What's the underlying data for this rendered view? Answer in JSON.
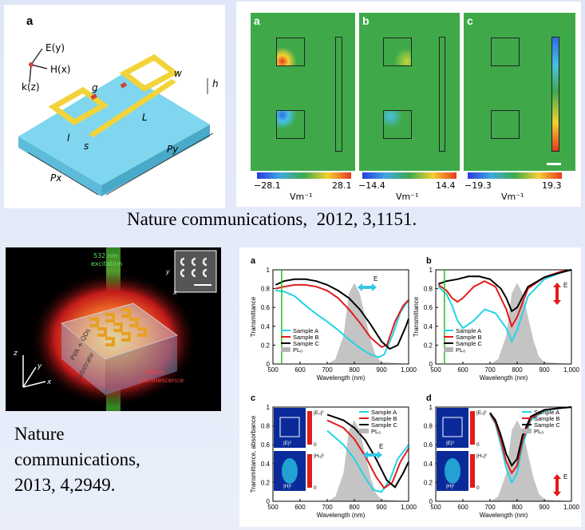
{
  "citations": {
    "top": "Nature communications,  2012, 3,1151.",
    "bottom_line1": "Nature",
    "bottom_line2": "communications,",
    "bottom_line3": "2013, 4,2949."
  },
  "schematic": {
    "panel_letter": "a",
    "axis_e": "E(y)",
    "axis_h": "H(x)",
    "axis_k": "k(z)",
    "dims": {
      "g": "g",
      "w": "w",
      "h": "h",
      "L": "L",
      "l": "l",
      "s": "s",
      "py": "Py",
      "px": "Px"
    },
    "colors": {
      "substrate": "#6ccfe8",
      "metal": "#f2d43a",
      "gap": "#d0413a"
    }
  },
  "field_maps": {
    "panels": [
      {
        "letter": "a",
        "min": "−28.1",
        "max": "28.1",
        "unit": "Vm⁻¹"
      },
      {
        "letter": "b",
        "min": "−14.4",
        "max": "14.4",
        "unit": "Vm⁻¹"
      },
      {
        "letter": "c",
        "min": "−19.3",
        "max": "19.3",
        "unit": "Vm⁻¹"
      }
    ],
    "colors": {
      "background": "#3fa94a"
    }
  },
  "device_photo": {
    "excitation": "532 nm excitation",
    "excitation_l1": "532 nm",
    "excitation_l2": "excitation",
    "pva": "PVA + QDs",
    "substrate": "Substrate",
    "emission_l1": "Photo-",
    "emission_l2": "luminescence",
    "axis_x": "x",
    "axis_y": "y",
    "axis_z": "z",
    "inset_axis_x": "x",
    "inset_axis_y": "y"
  },
  "spectra_panels": {
    "a": {
      "letter": "a",
      "ylabel": "Transmittance",
      "xlabel": "Wavelength (nm)",
      "legend": [
        "Sample A",
        "Sample B",
        "Sample C",
        "PL₀"
      ],
      "polarization": "E"
    },
    "b": {
      "letter": "b",
      "ylabel": "Transmittance",
      "xlabel": "Wavelength (nm)",
      "legend": [
        "Sample A",
        "Sample B",
        "Sample C",
        "PL₀"
      ],
      "polarization": "E"
    },
    "c": {
      "letter": "c",
      "ylabel": "Transmittance, absorbance",
      "xlabel": "Wavelength (nm)",
      "legend": [
        "Sample A",
        "Sample B",
        "Sample C",
        "PL₀"
      ],
      "polarization": "E",
      "inset_e": "|E|²",
      "inset_h": "|H|²",
      "inset_e_top": "|E₀|²",
      "inset_h_top": "|H₀|²",
      "inset_min": "0"
    },
    "d": {
      "letter": "d",
      "xlabel": "Wavelength (nm)",
      "legend": [
        "Sample A",
        "Sample B",
        "Sample C",
        "PL₀"
      ],
      "polarization": "E",
      "inset_e": "|E|²",
      "inset_h": "|H|²",
      "inset_e_top": "|E₀|²",
      "inset_h_top": "|H₀|²",
      "inset_min": "0"
    }
  },
  "chart_data": [
    {
      "type": "line",
      "panel": "a",
      "xlim": [
        500,
        1000
      ],
      "ylim": [
        0,
        1
      ],
      "x_ticks": [
        "500",
        "600",
        "700",
        "800",
        "900",
        "1,000"
      ],
      "y_ticks": [
        "0",
        "0.2",
        "0.4",
        "0.6",
        "0.8",
        "1"
      ],
      "series": [
        {
          "name": "Sample A",
          "color": "#22d3e6",
          "x": [
            510,
            540,
            580,
            620,
            660,
            700,
            740,
            780,
            820,
            860,
            890,
            910,
            940,
            970,
            1000
          ],
          "y": [
            0.78,
            0.77,
            0.72,
            0.62,
            0.53,
            0.45,
            0.36,
            0.26,
            0.17,
            0.1,
            0.07,
            0.1,
            0.3,
            0.55,
            0.68
          ]
        },
        {
          "name": "Sample B",
          "color": "#e31b1b",
          "x": [
            510,
            540,
            580,
            620,
            660,
            700,
            740,
            780,
            820,
            860,
            900,
            920,
            950,
            980,
            1000
          ],
          "y": [
            0.8,
            0.82,
            0.84,
            0.84,
            0.82,
            0.78,
            0.7,
            0.58,
            0.44,
            0.28,
            0.18,
            0.2,
            0.45,
            0.62,
            0.68
          ]
        },
        {
          "name": "Sample C",
          "color": "#000000",
          "x": [
            510,
            540,
            580,
            620,
            660,
            700,
            740,
            780,
            820,
            860,
            900,
            930,
            960,
            990,
            1000
          ],
          "y": [
            0.84,
            0.88,
            0.9,
            0.9,
            0.88,
            0.84,
            0.78,
            0.7,
            0.58,
            0.42,
            0.24,
            0.16,
            0.2,
            0.4,
            0.48
          ]
        },
        {
          "name": "PL₀",
          "color": "#b5b5b5",
          "x": [
            500,
            700,
            730,
            760,
            780,
            800,
            820,
            840,
            860,
            880,
            900,
            1000
          ],
          "y": [
            0,
            0,
            0.05,
            0.3,
            0.75,
            0.86,
            0.75,
            0.5,
            0.25,
            0.08,
            0.02,
            0
          ]
        }
      ]
    },
    {
      "type": "line",
      "panel": "b",
      "xlim": [
        500,
        1000
      ],
      "ylim": [
        0,
        1
      ],
      "x_ticks": [
        "500",
        "600",
        "700",
        "800",
        "900",
        "1,000"
      ],
      "y_ticks": [
        "0",
        "0.2",
        "0.4",
        "0.6",
        "0.8",
        "1"
      ],
      "series": [
        {
          "name": "Sample A",
          "color": "#22d3e6",
          "x": [
            510,
            540,
            560,
            580,
            600,
            640,
            680,
            720,
            760,
            780,
            800,
            840,
            900,
            960,
            1000
          ],
          "y": [
            0.82,
            0.74,
            0.62,
            0.46,
            0.38,
            0.46,
            0.58,
            0.54,
            0.38,
            0.24,
            0.36,
            0.72,
            0.9,
            0.97,
            1.0
          ]
        },
        {
          "name": "Sample B",
          "color": "#e31b1b",
          "x": [
            510,
            540,
            560,
            580,
            600,
            640,
            680,
            720,
            760,
            780,
            800,
            840,
            900,
            960,
            1000
          ],
          "y": [
            0.84,
            0.78,
            0.7,
            0.66,
            0.7,
            0.82,
            0.88,
            0.82,
            0.58,
            0.4,
            0.5,
            0.8,
            0.92,
            0.98,
            1.0
          ]
        },
        {
          "name": "Sample C",
          "color": "#000000",
          "x": [
            510,
            540,
            580,
            620,
            660,
            700,
            740,
            760,
            780,
            800,
            840,
            900,
            960,
            1000
          ],
          "y": [
            0.85,
            0.88,
            0.9,
            0.93,
            0.93,
            0.9,
            0.8,
            0.7,
            0.56,
            0.6,
            0.82,
            0.92,
            0.97,
            1.0
          ]
        },
        {
          "name": "PL₀",
          "color": "#b5b5b5",
          "x": [
            500,
            700,
            730,
            760,
            780,
            800,
            820,
            840,
            860,
            880,
            900,
            1000
          ],
          "y": [
            0,
            0,
            0.05,
            0.3,
            0.75,
            0.86,
            0.75,
            0.5,
            0.25,
            0.08,
            0.02,
            0
          ]
        }
      ]
    },
    {
      "type": "line",
      "panel": "c",
      "xlim": [
        500,
        1000
      ],
      "ylim": [
        0,
        1
      ],
      "x_ticks": [
        "500",
        "600",
        "700",
        "800",
        "900",
        "1,000"
      ],
      "y_ticks": [
        "0",
        "0.2",
        "0.4",
        "0.6",
        "0.8",
        "1"
      ],
      "series": [
        {
          "name": "Sample A",
          "color": "#22d3e6",
          "x": [
            700,
            760,
            800,
            840,
            870,
            900,
            930,
            960,
            1000
          ],
          "y": [
            0.75,
            0.6,
            0.45,
            0.25,
            0.12,
            0.1,
            0.22,
            0.45,
            0.6
          ]
        },
        {
          "name": "Sample B",
          "color": "#e31b1b",
          "x": [
            700,
            760,
            800,
            840,
            880,
            910,
            940,
            970,
            1000
          ],
          "y": [
            0.86,
            0.78,
            0.66,
            0.48,
            0.26,
            0.14,
            0.2,
            0.42,
            0.56
          ]
        },
        {
          "name": "Sample C",
          "color": "#000000",
          "x": [
            700,
            760,
            800,
            840,
            880,
            920,
            950,
            980,
            1000
          ],
          "y": [
            0.92,
            0.86,
            0.78,
            0.65,
            0.45,
            0.22,
            0.15,
            0.3,
            0.42
          ]
        },
        {
          "name": "PL₀",
          "color": "#b5b5b5",
          "x": [
            500,
            700,
            730,
            760,
            780,
            800,
            820,
            840,
            860,
            880,
            900,
            1000
          ],
          "y": [
            0,
            0,
            0.05,
            0.3,
            0.75,
            0.86,
            0.75,
            0.5,
            0.25,
            0.08,
            0.02,
            0
          ]
        }
      ]
    },
    {
      "type": "line",
      "panel": "d",
      "xlim": [
        500,
        1000
      ],
      "ylim": [
        0,
        1
      ],
      "x_ticks": [
        "500",
        "600",
        "700",
        "800",
        "900",
        "1,000"
      ],
      "y_ticks": [
        "0",
        "0.2",
        "0.4",
        "0.6",
        "0.8",
        "1"
      ],
      "series": [
        {
          "name": "Sample A",
          "color": "#22d3e6",
          "x": [
            700,
            720,
            740,
            760,
            780,
            800,
            820,
            850,
            900,
            960,
            1000
          ],
          "y": [
            0.92,
            0.82,
            0.6,
            0.35,
            0.2,
            0.3,
            0.6,
            0.86,
            0.96,
            0.99,
            1.0
          ]
        },
        {
          "name": "Sample B",
          "color": "#e31b1b",
          "x": [
            700,
            720,
            740,
            760,
            780,
            800,
            820,
            850,
            900,
            960,
            1000
          ],
          "y": [
            0.93,
            0.84,
            0.65,
            0.42,
            0.3,
            0.38,
            0.65,
            0.88,
            0.97,
            0.99,
            1.0
          ]
        },
        {
          "name": "Sample C",
          "color": "#000000",
          "x": [
            700,
            720,
            740,
            760,
            780,
            800,
            820,
            850,
            900,
            960,
            1000
          ],
          "y": [
            0.94,
            0.86,
            0.7,
            0.5,
            0.38,
            0.45,
            0.7,
            0.9,
            0.97,
            0.99,
            1.0
          ]
        },
        {
          "name": "PL₀",
          "color": "#b5b5b5",
          "x": [
            500,
            700,
            730,
            760,
            780,
            800,
            820,
            840,
            860,
            880,
            900,
            1000
          ],
          "y": [
            0,
            0,
            0.05,
            0.3,
            0.75,
            0.86,
            0.75,
            0.5,
            0.25,
            0.08,
            0.02,
            0
          ]
        }
      ]
    }
  ]
}
